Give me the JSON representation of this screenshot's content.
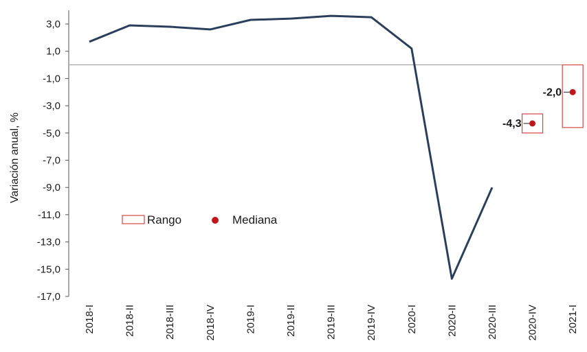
{
  "chart_data": {
    "type": "line",
    "ylabel": "Variación anual, %",
    "ylim": [
      -17,
      3
    ],
    "y_ticks": [
      "3,0",
      "1,0",
      "-1,0",
      "-3,0",
      "-5,0",
      "-7,0",
      "-9,0",
      "-11,0",
      "-13,0",
      "-15,0",
      "-17,0"
    ],
    "categories": [
      "2018-I",
      "2018-II",
      "2018-III",
      "2018-IV",
      "2019-I",
      "2019-II",
      "2019-III",
      "2019-IV",
      "2020-I",
      "2020-II",
      "2020-III",
      "2020-IV",
      "2021-I"
    ],
    "series": [
      {
        "values": [
          1.7,
          2.9,
          2.8,
          2.6,
          3.3,
          3.4,
          3.6,
          3.5,
          1.2,
          -15.7,
          -9.0,
          null,
          null
        ],
        "color": "#2b3f5c"
      }
    ],
    "forecast": [
      {
        "category": "2020-IV",
        "median": -4.3,
        "median_label": "-4,3",
        "range": [
          -5.0,
          -3.6
        ]
      },
      {
        "category": "2021-I",
        "median": -2.0,
        "median_label": "-2,0",
        "range": [
          -4.6,
          0.0
        ]
      }
    ],
    "legend": {
      "range_label": "Rango",
      "median_label": "Mediana",
      "placement": "left-middle"
    },
    "colors": {
      "line": "#2b3f5c",
      "range_box": "#d64545",
      "median": "#c0151b",
      "zero_line": "#9a9a9a",
      "axis": "#555555"
    }
  }
}
